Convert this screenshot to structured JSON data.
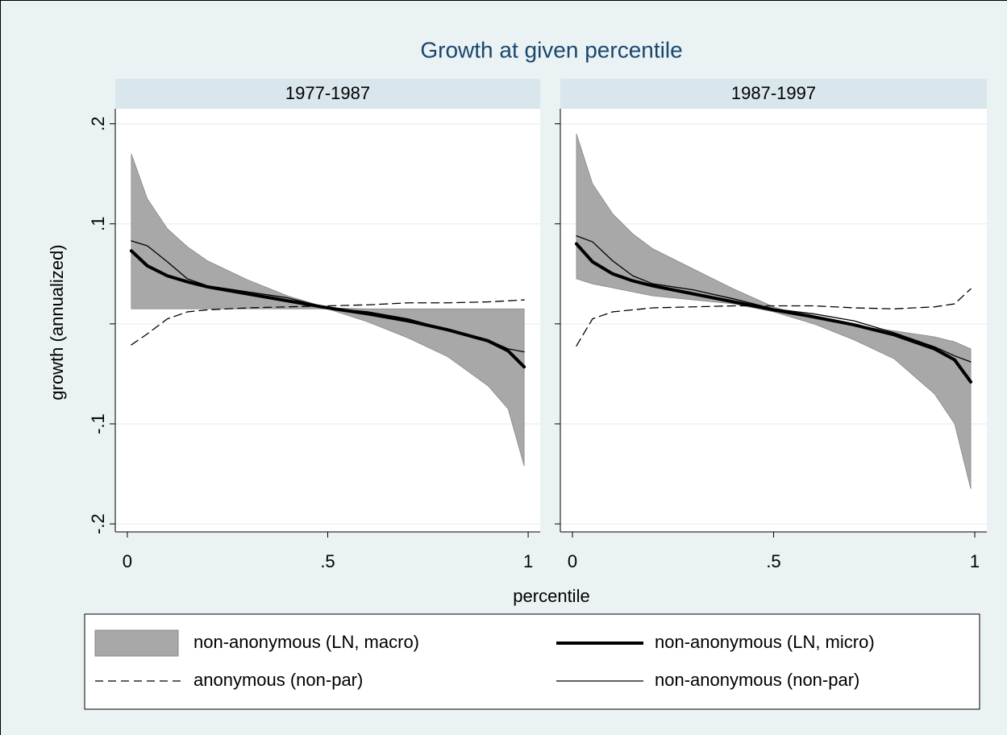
{
  "title": "Growth at given percentile",
  "x_label": "percentile",
  "y_label": "growth (annualized)",
  "chart_data": [
    {
      "type": "line",
      "title": "1977-1987",
      "x": [
        0.01,
        0.05,
        0.1,
        0.15,
        0.2,
        0.3,
        0.4,
        0.5,
        0.6,
        0.7,
        0.8,
        0.9,
        0.95,
        0.99
      ],
      "xlim": [
        -0.03,
        1.03
      ],
      "xticks": [
        0,
        {
          "value": 0.5,
          "label": ".5"
        },
        1
      ],
      "ylim": [
        -0.208,
        0.215
      ],
      "yticks": [
        {
          "value": 0.2,
          "label": ".2"
        },
        {
          "value": 0.1,
          "label": ".1"
        },
        0,
        {
          "value": -0.1,
          "label": "-.1"
        },
        {
          "value": -0.2,
          "label": "-.2"
        }
      ],
      "grid": true,
      "series": [
        {
          "name": "non-anonymous (LN, macro)",
          "kind": "band",
          "color": "#a8a8a8",
          "upper": [
            0.17,
            0.125,
            0.095,
            0.077,
            0.063,
            0.044,
            0.028,
            0.016,
            0.015,
            0.015,
            0.015,
            0.015,
            0.015,
            0.015
          ],
          "lower": [
            0.015,
            0.015,
            0.015,
            0.015,
            0.015,
            0.015,
            0.015,
            0.015,
            0.002,
            -0.014,
            -0.033,
            -0.062,
            -0.085,
            -0.142
          ]
        },
        {
          "name": "non-anonymous (LN, micro)",
          "kind": "line",
          "color": "#000000",
          "width": 4,
          "values": [
            0.073,
            0.058,
            0.048,
            0.042,
            0.037,
            0.03,
            0.023,
            0.016,
            0.01,
            0.003,
            -0.006,
            -0.017,
            -0.027,
            -0.043
          ]
        },
        {
          "name": "anonymous (non-par)",
          "kind": "line",
          "color": "#000000",
          "width": 1.3,
          "dashed": true,
          "values": [
            -0.021,
            -0.01,
            0.005,
            0.012,
            0.014,
            0.016,
            0.017,
            0.018,
            0.019,
            0.021,
            0.021,
            0.022,
            0.023,
            0.024
          ]
        },
        {
          "name": "non-anonymous (non-par)",
          "kind": "line",
          "color": "#000000",
          "width": 1.3,
          "values": [
            0.083,
            0.078,
            0.062,
            0.045,
            0.038,
            0.032,
            0.026,
            0.016,
            0.012,
            0.005,
            -0.006,
            -0.016,
            -0.025,
            -0.028
          ]
        }
      ]
    },
    {
      "type": "line",
      "title": "1987-1997",
      "x": [
        0.01,
        0.05,
        0.1,
        0.15,
        0.2,
        0.3,
        0.4,
        0.5,
        0.6,
        0.7,
        0.8,
        0.9,
        0.95,
        0.99
      ],
      "xlim": [
        -0.03,
        1.03
      ],
      "xticks": [
        0,
        {
          "value": 0.5,
          "label": ".5"
        },
        1
      ],
      "ylim": [
        -0.208,
        0.215
      ],
      "yticks": [
        0.2,
        0.1,
        0,
        -0.1,
        -0.2
      ],
      "grid": true,
      "series": [
        {
          "kind": "band",
          "color": "#a8a8a8",
          "upper": [
            0.19,
            0.14,
            0.11,
            0.09,
            0.075,
            0.055,
            0.035,
            0.017,
            0.005,
            -0.002,
            -0.007,
            -0.013,
            -0.018,
            -0.025
          ],
          "lower": [
            0.045,
            0.04,
            0.036,
            0.032,
            0.028,
            0.024,
            0.02,
            0.012,
            0.0,
            -0.016,
            -0.035,
            -0.07,
            -0.1,
            -0.165
          ]
        },
        {
          "kind": "line",
          "color": "#000000",
          "width": 4,
          "values": [
            0.08,
            0.062,
            0.05,
            0.043,
            0.038,
            0.03,
            0.022,
            0.014,
            0.007,
            -0.001,
            -0.011,
            -0.025,
            -0.036,
            -0.058
          ]
        },
        {
          "kind": "line",
          "color": "#000000",
          "width": 1.3,
          "dashed": true,
          "values": [
            -0.022,
            0.005,
            0.012,
            0.014,
            0.016,
            0.017,
            0.018,
            0.018,
            0.018,
            0.016,
            0.015,
            0.017,
            0.02,
            0.035
          ]
        },
        {
          "kind": "line",
          "color": "#000000",
          "width": 1.3,
          "values": [
            0.088,
            0.082,
            0.063,
            0.048,
            0.04,
            0.034,
            0.025,
            0.015,
            0.01,
            0.003,
            -0.009,
            -0.023,
            -0.032,
            -0.038
          ]
        }
      ]
    }
  ]
}
